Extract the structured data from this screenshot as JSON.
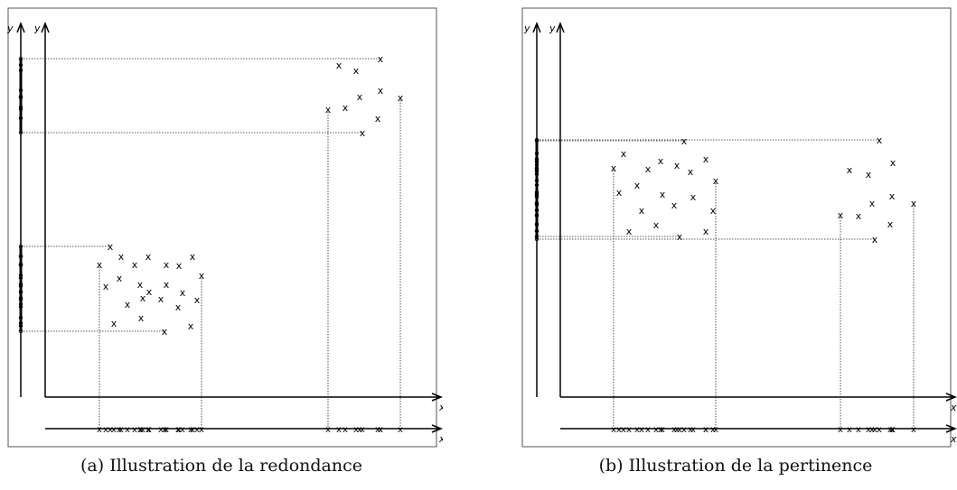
{
  "panels": [
    {
      "id": "a",
      "caption_label": "(a)",
      "caption_text": "Illustration de la redondance",
      "axis_labels": {
        "x1": "x",
        "x2": "x",
        "y1": "y",
        "y2": "y"
      },
      "clusters": [
        {
          "points": [
            [
              122,
              273
            ],
            [
              110,
              293
            ],
            [
              134,
              284
            ],
            [
              149,
              293
            ],
            [
              164,
              284
            ],
            [
              184,
              293
            ],
            [
              198,
              294
            ],
            [
              213,
              284
            ],
            [
              223,
              305
            ],
            [
              117,
              317
            ],
            [
              132,
              308
            ],
            [
              155,
              315
            ],
            [
              165,
              323
            ],
            [
              184,
              315
            ],
            [
              202,
              324
            ],
            [
              141,
              337
            ],
            [
              158,
              330
            ],
            [
              178,
              331
            ],
            [
              197,
              340
            ],
            [
              218,
              332
            ],
            [
              126,
              358
            ],
            [
              156,
              352
            ],
            [
              182,
              367
            ],
            [
              211,
              361
            ]
          ]
        },
        {
          "points": [
            [
              375,
              72
            ],
            [
              394,
              78
            ],
            [
              421,
              65
            ],
            [
              363,
              121
            ],
            [
              382,
              119
            ],
            [
              398,
              107
            ],
            [
              421,
              100
            ],
            [
              443,
              108
            ],
            [
              418,
              131
            ],
            [
              401,
              147
            ]
          ]
        }
      ]
    },
    {
      "id": "b",
      "caption_label": "(b)",
      "caption_text": "Illustration de la pertinence",
      "axis_labels": {
        "x1": "x",
        "x2": "x",
        "y1": "y",
        "y2": "y"
      },
      "clusters": [
        {
          "points": [
            [
              690,
              170
            ],
            [
              679,
              186
            ],
            [
              705,
              205
            ],
            [
              717,
              187
            ],
            [
              731,
              178
            ],
            [
              749,
              183
            ],
            [
              764,
              190
            ],
            [
              781,
              176
            ],
            [
              757,
              156
            ],
            [
              792,
              200
            ],
            [
              685,
              213
            ],
            [
              710,
              233
            ],
            [
              733,
              215
            ],
            [
              746,
              227
            ],
            [
              767,
              218
            ],
            [
              789,
              233
            ],
            [
              696,
              256
            ],
            [
              726,
              249
            ],
            [
              752,
              262
            ],
            [
              781,
              256
            ]
          ]
        },
        {
          "points": [
            [
              973,
              155
            ],
            [
              940,
              188
            ],
            [
              961,
              193
            ],
            [
              988,
              180
            ],
            [
              930,
              238
            ],
            [
              950,
              239
            ],
            [
              965,
              225
            ],
            [
              987,
              217
            ],
            [
              1011,
              225
            ],
            [
              985,
              248
            ],
            [
              968,
              265
            ]
          ]
        }
      ]
    }
  ]
}
